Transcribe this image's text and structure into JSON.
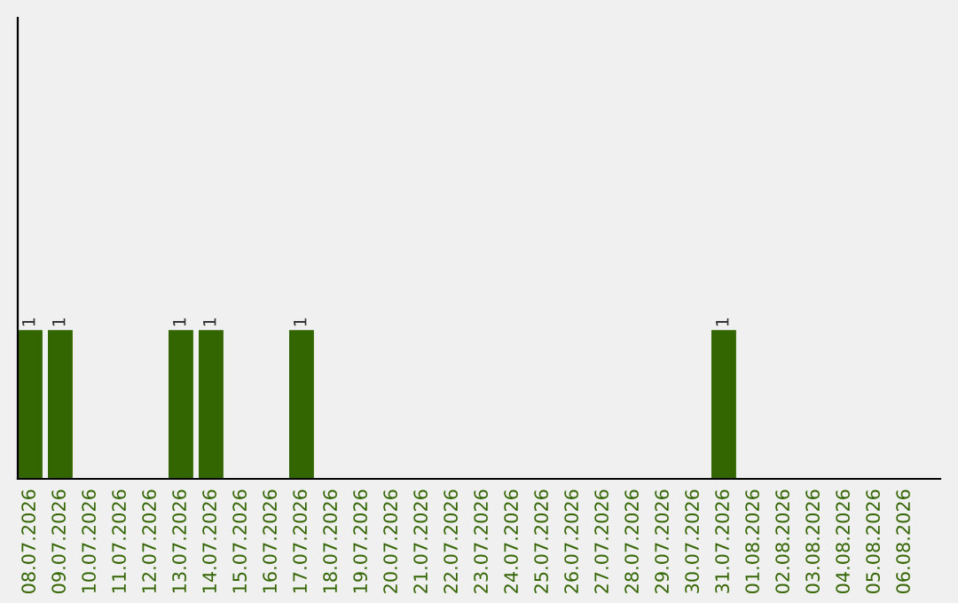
{
  "chart_data": {
    "type": "bar",
    "categories": [
      "08.07.2026",
      "09.07.2026",
      "10.07.2026",
      "11.07.2026",
      "12.07.2026",
      "13.07.2026",
      "14.07.2026",
      "15.07.2026",
      "16.07.2026",
      "17.07.2026",
      "18.07.2026",
      "19.07.2026",
      "20.07.2026",
      "21.07.2026",
      "22.07.2026",
      "23.07.2026",
      "24.07.2026",
      "25.07.2026",
      "26.07.2026",
      "27.07.2026",
      "28.07.2026",
      "29.07.2026",
      "30.07.2026",
      "31.07.2026",
      "01.08.2026",
      "02.08.2026",
      "03.08.2026",
      "04.08.2026",
      "05.08.2026",
      "06.08.2026"
    ],
    "values": [
      1,
      1,
      0,
      0,
      0,
      1,
      1,
      0,
      0,
      1,
      0,
      0,
      0,
      0,
      0,
      0,
      0,
      0,
      0,
      0,
      0,
      0,
      0,
      1,
      0,
      0,
      0,
      0,
      0,
      0
    ],
    "value_labels": [
      "1",
      "1",
      null,
      null,
      null,
      "1",
      "1",
      null,
      null,
      "1",
      null,
      null,
      null,
      null,
      null,
      null,
      null,
      null,
      null,
      null,
      null,
      null,
      null,
      "1",
      null,
      null,
      null,
      null,
      null,
      null
    ],
    "color": "#336600",
    "ylim": [
      0,
      3.1
    ],
    "tick_labels": "x",
    "grid": false,
    "legend": false
  }
}
